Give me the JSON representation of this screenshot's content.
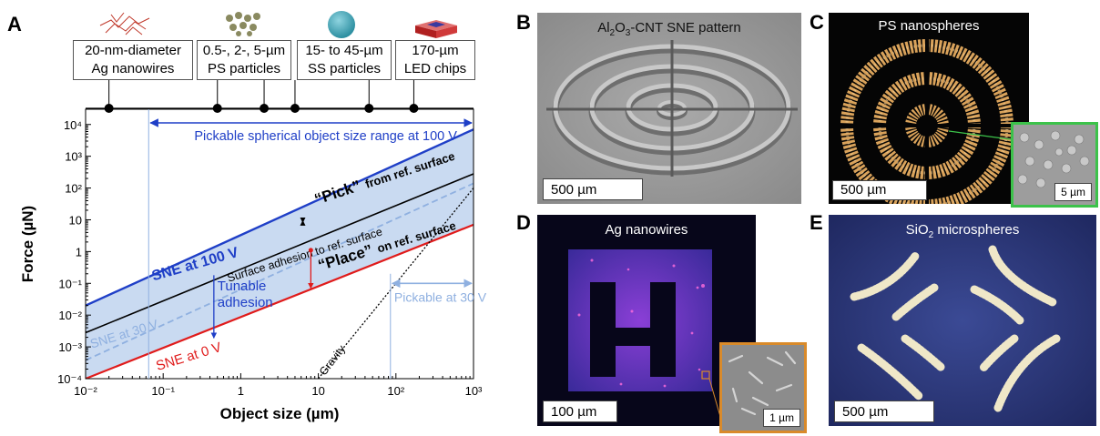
{
  "panels": {
    "A": "A",
    "B": "B",
    "C": "C",
    "D": "D",
    "E": "E"
  },
  "objects": [
    {
      "line1": "20-nm-diameter",
      "line2": "Ag nanowires"
    },
    {
      "line1": "0.5-, 2-, 5-µm",
      "line2": "PS particles"
    },
    {
      "line1": "15- to 45-µm",
      "line2": "SS particles"
    },
    {
      "line1": "170-µm",
      "line2": "LED chips"
    }
  ],
  "chart_data": {
    "type": "line",
    "xlabel": "Object size (µm)",
    "ylabel": "Force (µN)",
    "x_scale": "log",
    "y_scale": "log",
    "xlim": [
      0.01,
      1000
    ],
    "ylim": [
      0.0001,
      30000
    ],
    "x_ticks": [
      "10⁻²",
      "10⁻¹",
      "1",
      "10",
      "10²",
      "10³"
    ],
    "y_ticks": [
      "10⁻⁴",
      "10⁻³",
      "10⁻²",
      "10⁻¹",
      "1",
      "10",
      "10²",
      "10³",
      "10⁴"
    ],
    "object_sizes": [
      0.02,
      0.5,
      2,
      5,
      45,
      170
    ],
    "series": [
      {
        "name": "SNE at 100 V",
        "color": "#1f3fc7",
        "x": [
          0.01,
          1000
        ],
        "y": [
          0.02,
          7000
        ]
      },
      {
        "name": "SNE at 30 V",
        "color": "#8fb0e0",
        "x": [
          0.01,
          1000
        ],
        "y": [
          0.00038,
          140
        ]
      },
      {
        "name": "SNE at 0 V",
        "color": "#e01b1b",
        "x": [
          0.01,
          1000
        ],
        "y": [
          0.0001,
          7
        ]
      },
      {
        "name": "Surface adhesion to ref. surface",
        "color": "#000000",
        "x": [
          0.01,
          1000
        ],
        "y": [
          0.0028,
          280
        ]
      },
      {
        "name": "Gravity",
        "color": "#000000",
        "x": [
          10,
          1000
        ],
        "y": [
          0.0001,
          100
        ]
      }
    ],
    "annotations": {
      "range_100v": "Pickable spherical object size range at 100 V",
      "range_30v": "Pickable at 30 V",
      "pick_word": "“Pick”",
      "pick_rest": "from ref. surface",
      "place_word": "“Place”",
      "place_rest": "on ref. surface",
      "surface": "Surface adhesion to ref. surface",
      "tunable": "Tunable adhesion",
      "sne100": "SNE at 100 V",
      "sne30": "SNE at 30 V",
      "sne0": "SNE at 0 V",
      "gravity": "Gravity"
    }
  },
  "images": {
    "B": {
      "title_pre": "Al",
      "title_sub1": "2",
      "title_mid": "O",
      "title_sub2": "3",
      "title_post": "-CNT SNE pattern",
      "scale": "500 µm"
    },
    "C": {
      "title": "PS nanospheres",
      "scale": "500 µm",
      "inset_scale": "5 µm"
    },
    "D": {
      "title": "Ag nanowires",
      "scale": "100 µm",
      "inset_scale": "1 µm"
    },
    "E": {
      "title_pre": "SiO",
      "title_sub": "2",
      "title_post": " microspheres",
      "scale": "500 µm"
    }
  },
  "colors": {
    "blue": "#1f3fc7",
    "light_blue": "#8fb0e0",
    "red": "#e01b1b",
    "band": "#c9daf1",
    "green_inset": "#3cc24a",
    "orange_inset": "#d98a2a"
  }
}
